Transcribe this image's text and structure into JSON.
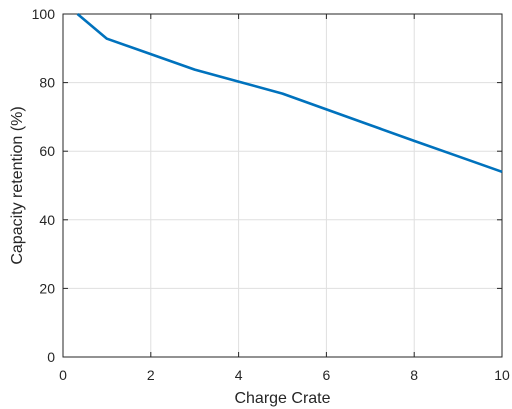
{
  "chart_data": {
    "type": "line",
    "xlabel": "Charge Crate",
    "ylabel": "Capacity retention (%)",
    "xlim": [
      0,
      10
    ],
    "ylim": [
      0,
      100
    ],
    "xticks": [
      0,
      2,
      4,
      6,
      8,
      10
    ],
    "yticks": [
      0,
      20,
      40,
      60,
      80,
      100
    ],
    "grid": true,
    "series": [
      {
        "color": "#0072BD",
        "x": [
          0.33,
          1,
          2,
          3,
          4,
          5,
          6,
          7,
          8,
          9,
          10
        ],
        "y": [
          100,
          92.8,
          88.3,
          83.8,
          80.3,
          76.8,
          72.2,
          67.6,
          63.0,
          58.5,
          54.0
        ]
      }
    ]
  }
}
